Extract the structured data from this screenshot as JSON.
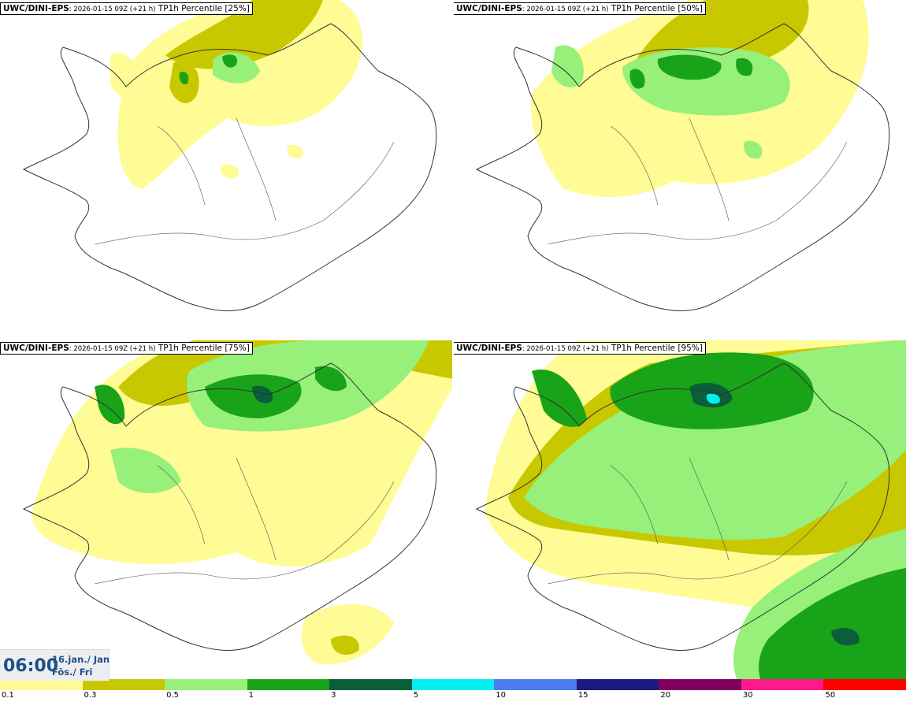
{
  "panels": [
    {
      "id": "tl",
      "model": "UWC/DINI-EPS",
      "run": ": 2026-01-15 09Z (+21 h)",
      "product": "TP1h Percentile [25%]"
    },
    {
      "id": "tr",
      "model": "UWC/DINI-EPS",
      "run": ": 2026-01-15 09Z (+21 h)",
      "product": "TP1h Percentile [50%]"
    },
    {
      "id": "bl",
      "model": "UWC/DINI-EPS",
      "run": ": 2026-01-15 09Z (+21 h)",
      "product": "TP1h Percentile [75%]"
    },
    {
      "id": "br",
      "model": "UWC/DINI-EPS",
      "run": ": 2026-01-15 09Z (+21 h)",
      "product": "TP1h Percentile [95%]"
    }
  ],
  "valid_time": {
    "time": "06:00",
    "date_line1": "16.jan./ Jan",
    "date_line2": "Fös./ Fri"
  },
  "legend": {
    "colors": [
      "#fffb95",
      "#c8c800",
      "#96f07a",
      "#19a319",
      "#0a5e3a",
      "#00f0f0",
      "#4b7df0",
      "#1a1a80",
      "#800060",
      "#ff1a8c",
      "#ff0000"
    ],
    "labels": [
      "0.1",
      "0.3",
      "0.5",
      "1",
      "3",
      "5",
      "10",
      "15",
      "20",
      "30",
      "50"
    ]
  },
  "colors": {
    "land_outline": "#333333",
    "yellow": "#fffb95",
    "olive": "#c8c800",
    "light_green": "#96f07a",
    "green": "#19a319",
    "dark_green": "#0a5e3a",
    "cyan": "#00f0f0",
    "time_text": "#1f4f86"
  }
}
